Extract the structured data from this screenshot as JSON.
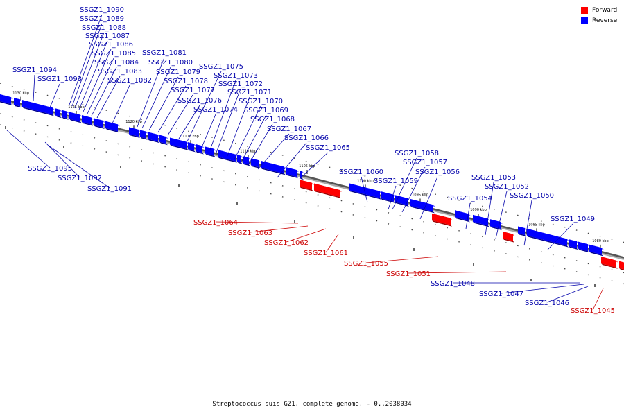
{
  "legend": {
    "forward_label": "Forward",
    "reverse_label": "Reverse",
    "forward_color": "#ff0000",
    "reverse_color": "#0000ff"
  },
  "caption": "Streptococcus suis GZ1, complete genome. - 0..2038034",
  "axis_ticks": [
    "1130 kbp",
    "1125 kbp",
    "1120 kbp",
    "1115 kbp",
    "1110 kbp",
    "1105 kbp",
    "1100 kbp",
    "1095 kbp",
    "1090 kbp",
    "1085 kbp",
    "1080 kbp"
  ],
  "genes": [
    {
      "id": "SSGZ1_1090",
      "strand": "reverse"
    },
    {
      "id": "SSGZ1_1089",
      "strand": "reverse"
    },
    {
      "id": "SSGZ1_1088",
      "strand": "reverse"
    },
    {
      "id": "SSGZ1_1087",
      "strand": "reverse"
    },
    {
      "id": "SSGZ1_1086",
      "strand": "reverse"
    },
    {
      "id": "SSGZ1_1085",
      "strand": "reverse"
    },
    {
      "id": "SSGZ1_1084",
      "strand": "reverse"
    },
    {
      "id": "SSGZ1_1083",
      "strand": "reverse"
    },
    {
      "id": "SSGZ1_1082",
      "strand": "reverse"
    },
    {
      "id": "SSGZ1_1094",
      "strand": "reverse"
    },
    {
      "id": "SSGZ1_1093",
      "strand": "reverse"
    },
    {
      "id": "SSGZ1_1081",
      "strand": "reverse"
    },
    {
      "id": "SSGZ1_1080",
      "strand": "reverse"
    },
    {
      "id": "SSGZ1_1079",
      "strand": "reverse"
    },
    {
      "id": "SSGZ1_1078",
      "strand": "reverse"
    },
    {
      "id": "SSGZ1_1077",
      "strand": "reverse"
    },
    {
      "id": "SSGZ1_1076",
      "strand": "reverse"
    },
    {
      "id": "SSGZ1_1075",
      "strand": "reverse"
    },
    {
      "id": "SSGZ1_1074",
      "strand": "reverse"
    },
    {
      "id": "SSGZ1_1073",
      "strand": "reverse"
    },
    {
      "id": "SSGZ1_1072",
      "strand": "reverse"
    },
    {
      "id": "SSGZ1_1071",
      "strand": "reverse"
    },
    {
      "id": "SSGZ1_1070",
      "strand": "reverse"
    },
    {
      "id": "SSGZ1_1069",
      "strand": "reverse"
    },
    {
      "id": "SSGZ1_1068",
      "strand": "reverse"
    },
    {
      "id": "SSGZ1_1067",
      "strand": "reverse"
    },
    {
      "id": "SSGZ1_1066",
      "strand": "reverse"
    },
    {
      "id": "SSGZ1_1065",
      "strand": "reverse"
    },
    {
      "id": "SSGZ1_1058",
      "strand": "reverse"
    },
    {
      "id": "SSGZ1_1057",
      "strand": "reverse"
    },
    {
      "id": "SSGZ1_1060",
      "strand": "reverse"
    },
    {
      "id": "SSGZ1_1056",
      "strand": "reverse"
    },
    {
      "id": "SSGZ1_1059",
      "strand": "reverse"
    },
    {
      "id": "SSGZ1_1053",
      "strand": "reverse"
    },
    {
      "id": "SSGZ1_1052",
      "strand": "reverse"
    },
    {
      "id": "SSGZ1_1054",
      "strand": "reverse"
    },
    {
      "id": "SSGZ1_1050",
      "strand": "reverse"
    },
    {
      "id": "SSGZ1_1049",
      "strand": "reverse"
    },
    {
      "id": "SSGZ1_1095",
      "strand": "reverse"
    },
    {
      "id": "SSGZ1_1092",
      "strand": "reverse"
    },
    {
      "id": "SSGZ1_1091",
      "strand": "reverse"
    },
    {
      "id": "SSGZ1_1064",
      "strand": "forward"
    },
    {
      "id": "SSGZ1_1063",
      "strand": "forward"
    },
    {
      "id": "SSGZ1_1062",
      "strand": "forward"
    },
    {
      "id": "SSGZ1_1061",
      "strand": "forward"
    },
    {
      "id": "SSGZ1_1055",
      "strand": "forward"
    },
    {
      "id": "SSGZ1_1051",
      "strand": "forward"
    },
    {
      "id": "SSGZ1_1048",
      "strand": "reverse"
    },
    {
      "id": "SSGZ1_1047",
      "strand": "reverse"
    },
    {
      "id": "SSGZ1_1046",
      "strand": "reverse"
    },
    {
      "id": "SSGZ1_1045",
      "strand": "forward"
    }
  ]
}
